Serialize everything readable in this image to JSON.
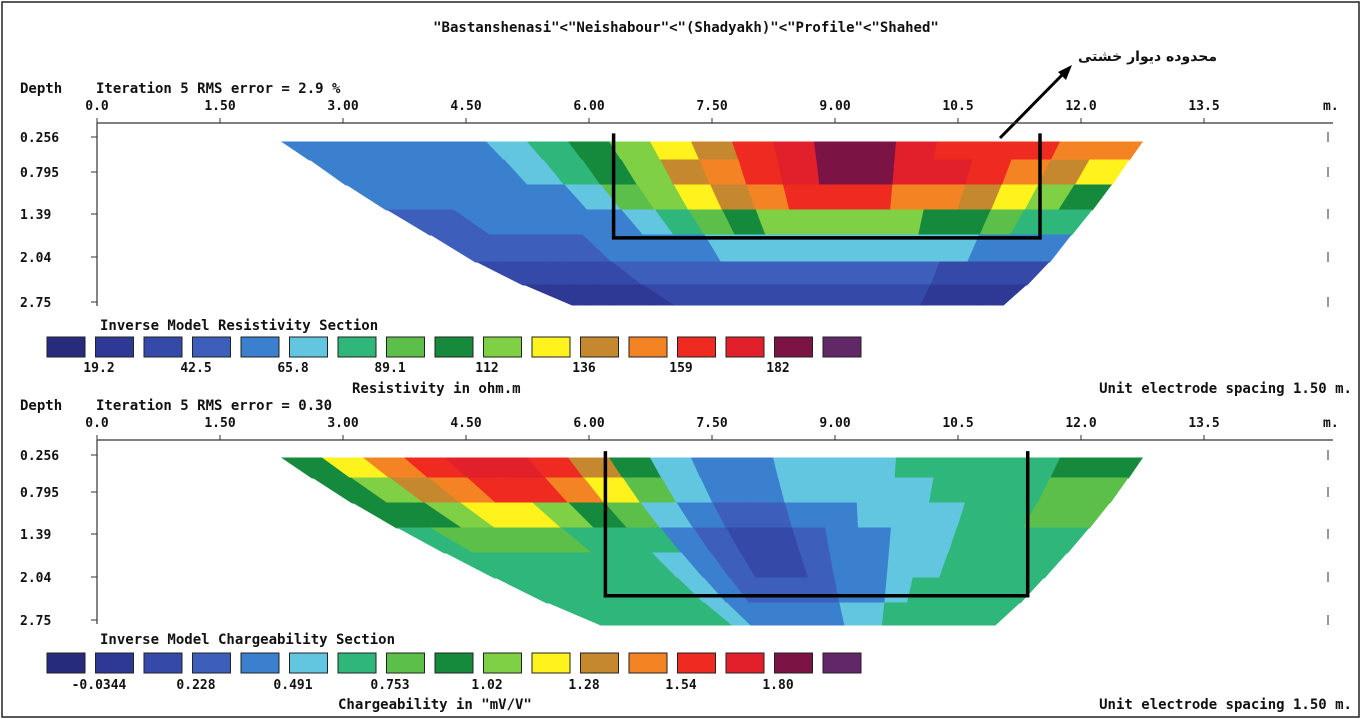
{
  "title": "\"Bastanshenasi\"<\"Neishabour\"<\"(Shadyakh)\"<\"Profile\"<\"Shahed\"",
  "annotation": "محدوده دیوار خشتی",
  "colors": {
    "scale": [
      "#262b7c",
      "#2d3994",
      "#3449a8",
      "#3d5fbb",
      "#3b7fcf",
      "#62c6e0",
      "#2fb67a",
      "#5cbf4a",
      "#158a3c",
      "#7fd044",
      "#fff21d",
      "#c6882f",
      "#f48324",
      "#ef2a20",
      "#e1202b",
      "#7b1444",
      "#612766"
    ],
    "frame": "#000000"
  },
  "chart_data": [
    {
      "type": "heatmap",
      "depth_label": "Depth",
      "iteration_label": "Iteration 5 RMS error = 2.9 %",
      "x_unit": "m.",
      "x_ticks": [
        "0.0",
        "1.50",
        "3.00",
        "4.50",
        "6.00",
        "7.50",
        "9.00",
        "10.5",
        "12.0",
        "13.5"
      ],
      "y_ticks": [
        "0.256",
        "0.795",
        "1.39",
        "2.04",
        "2.75"
      ],
      "section_title": "Inverse Model Resistivity Section",
      "legend_values": [
        "19.2",
        "42.5",
        "65.8",
        "89.1",
        "112",
        "136",
        "159",
        "182"
      ],
      "legend_caption": "Resistivity in ohm.m",
      "spacing_note": "Unit electrode spacing 1.50 m.",
      "model_x_range": [
        2.25,
        12.75
      ],
      "xlim": [
        0,
        15
      ],
      "highlight_box": {
        "x": [
          6.3,
          11.5
        ],
        "depth": [
          0.2,
          1.75
        ]
      },
      "grid": [
        [
          4,
          4,
          4,
          4,
          4,
          5,
          6,
          8,
          9,
          10,
          11,
          13,
          14,
          15,
          15,
          14,
          13,
          13,
          13,
          12,
          12
        ],
        [
          4,
          4,
          4,
          4,
          4,
          5,
          6,
          8,
          9,
          11,
          12,
          13,
          14,
          15,
          15,
          14,
          14,
          13,
          12,
          11,
          10
        ],
        [
          4,
          4,
          4,
          4,
          4,
          4,
          5,
          7,
          9,
          10,
          11,
          12,
          13,
          13,
          13,
          12,
          12,
          11,
          10,
          9,
          8
        ],
        [
          3,
          3,
          4,
          4,
          4,
          4,
          4,
          5,
          6,
          7,
          8,
          9,
          9,
          9,
          9,
          9,
          8,
          8,
          7,
          6,
          6
        ],
        [
          3,
          3,
          3,
          3,
          3,
          4,
          4,
          4,
          4,
          5,
          5,
          5,
          5,
          5,
          5,
          5,
          5,
          5,
          4,
          4,
          4
        ],
        [
          2,
          2,
          2,
          2,
          2,
          3,
          3,
          3,
          3,
          3,
          3,
          3,
          3,
          3,
          3,
          3,
          3,
          2,
          2,
          2,
          2
        ],
        [
          1,
          1,
          1,
          1,
          1,
          2,
          2,
          2,
          2,
          2,
          2,
          2,
          2,
          2,
          2,
          2,
          2,
          1,
          1,
          1,
          1
        ]
      ]
    },
    {
      "type": "heatmap",
      "depth_label": "Depth",
      "iteration_label": "Iteration 5 RMS error = 0.30",
      "x_unit": "m.",
      "x_ticks": [
        "0.0",
        "1.50",
        "3.00",
        "4.50",
        "6.00",
        "7.50",
        "9.00",
        "10.5",
        "12.0",
        "13.5"
      ],
      "y_ticks": [
        "0.256",
        "0.795",
        "1.39",
        "2.04",
        "2.75"
      ],
      "section_title": "Inverse Model Chargeability Section",
      "legend_values": [
        "-0.0344",
        "0.228",
        "0.491",
        "0.753",
        "1.02",
        "1.28",
        "1.54",
        "1.80"
      ],
      "legend_caption": "Chargeability in \"mV/V\"",
      "spacing_note": "Unit electrode spacing 1.50 m.",
      "model_x_range": [
        2.25,
        12.75
      ],
      "xlim": [
        0,
        15
      ],
      "highlight_box": {
        "x": [
          6.2,
          11.35
        ],
        "depth": [
          0.2,
          2.35
        ]
      },
      "grid": [
        [
          8,
          10,
          12,
          13,
          14,
          14,
          13,
          11,
          8,
          5,
          4,
          4,
          5,
          5,
          5,
          6,
          6,
          6,
          6,
          8,
          8
        ],
        [
          8,
          9,
          11,
          12,
          13,
          13,
          12,
          10,
          7,
          5,
          4,
          4,
          5,
          5,
          5,
          5,
          6,
          6,
          6,
          7,
          7
        ],
        [
          8,
          8,
          9,
          10,
          10,
          9,
          8,
          7,
          5,
          4,
          3,
          3,
          4,
          4,
          5,
          5,
          5,
          6,
          6,
          7,
          7
        ],
        [
          6,
          7,
          7,
          7,
          7,
          6,
          6,
          6,
          4,
          3,
          2,
          2,
          3,
          4,
          4,
          5,
          5,
          6,
          6,
          6,
          6
        ],
        [
          6,
          6,
          6,
          6,
          6,
          6,
          6,
          5,
          4,
          3,
          2,
          2,
          3,
          4,
          4,
          5,
          5,
          6,
          6,
          6,
          6
        ],
        [
          6,
          6,
          6,
          6,
          6,
          6,
          6,
          5,
          4,
          3,
          3,
          3,
          3,
          4,
          4,
          5,
          6,
          6,
          6,
          6,
          6
        ],
        [
          6,
          6,
          6,
          6,
          6,
          6,
          6,
          5,
          4,
          4,
          4,
          4,
          4,
          5,
          5,
          6,
          6,
          6,
          6,
          6,
          6
        ]
      ]
    }
  ]
}
